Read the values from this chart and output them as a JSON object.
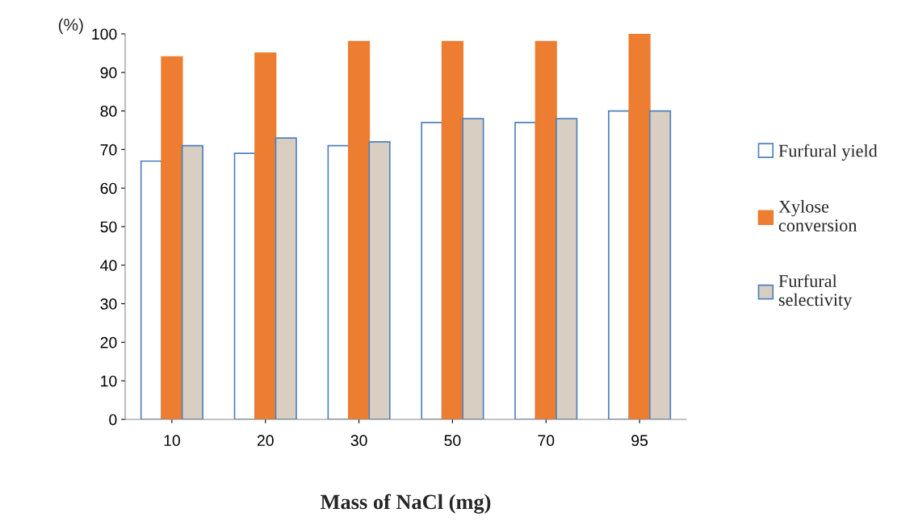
{
  "chart_data": {
    "type": "bar",
    "xlabel": "Mass of NaCl (mg)",
    "ylabel": "(%)",
    "categories": [
      "10",
      "20",
      "30",
      "50",
      "70",
      "95"
    ],
    "series": [
      {
        "name": "Furfural yield",
        "color": "#ffffff",
        "values": [
          67,
          69,
          71,
          77,
          77,
          80
        ]
      },
      {
        "name": "Xylose conversion",
        "color": "#ed7d31",
        "values": [
          94,
          95,
          98,
          98,
          98,
          100
        ]
      },
      {
        "name": "Furfural selectivity",
        "color": "#d8cfc2",
        "values": [
          71,
          73,
          72,
          78,
          78,
          80
        ]
      }
    ],
    "ylim": [
      0,
      100
    ],
    "yticks": [
      0,
      10,
      20,
      30,
      40,
      50,
      60,
      70,
      80,
      90,
      100
    ],
    "grid": false,
    "legend": "right"
  }
}
